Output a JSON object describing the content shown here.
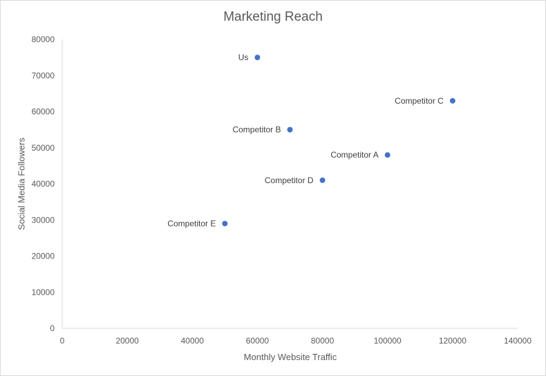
{
  "chart_data": {
    "type": "scatter",
    "title": "Marketing Reach",
    "xlabel": "Monthly Website Traffic",
    "ylabel": "Social Media Followers",
    "xlim": [
      0,
      140000
    ],
    "ylim": [
      0,
      80000
    ],
    "x_ticks": [
      0,
      20000,
      40000,
      60000,
      80000,
      100000,
      120000,
      140000
    ],
    "y_ticks": [
      0,
      10000,
      20000,
      30000,
      40000,
      50000,
      60000,
      70000,
      80000
    ],
    "grid": false,
    "legend": null,
    "marker_color": "#4472C4",
    "points": [
      {
        "label": "Us",
        "x": 60000,
        "y": 75000
      },
      {
        "label": "Competitor C",
        "x": 120000,
        "y": 63000
      },
      {
        "label": "Competitor B",
        "x": 70000,
        "y": 55000
      },
      {
        "label": "Competitor A",
        "x": 100000,
        "y": 48000
      },
      {
        "label": "Competitor D",
        "x": 80000,
        "y": 41000
      },
      {
        "label": "Competitor E",
        "x": 50000,
        "y": 29000
      }
    ]
  }
}
